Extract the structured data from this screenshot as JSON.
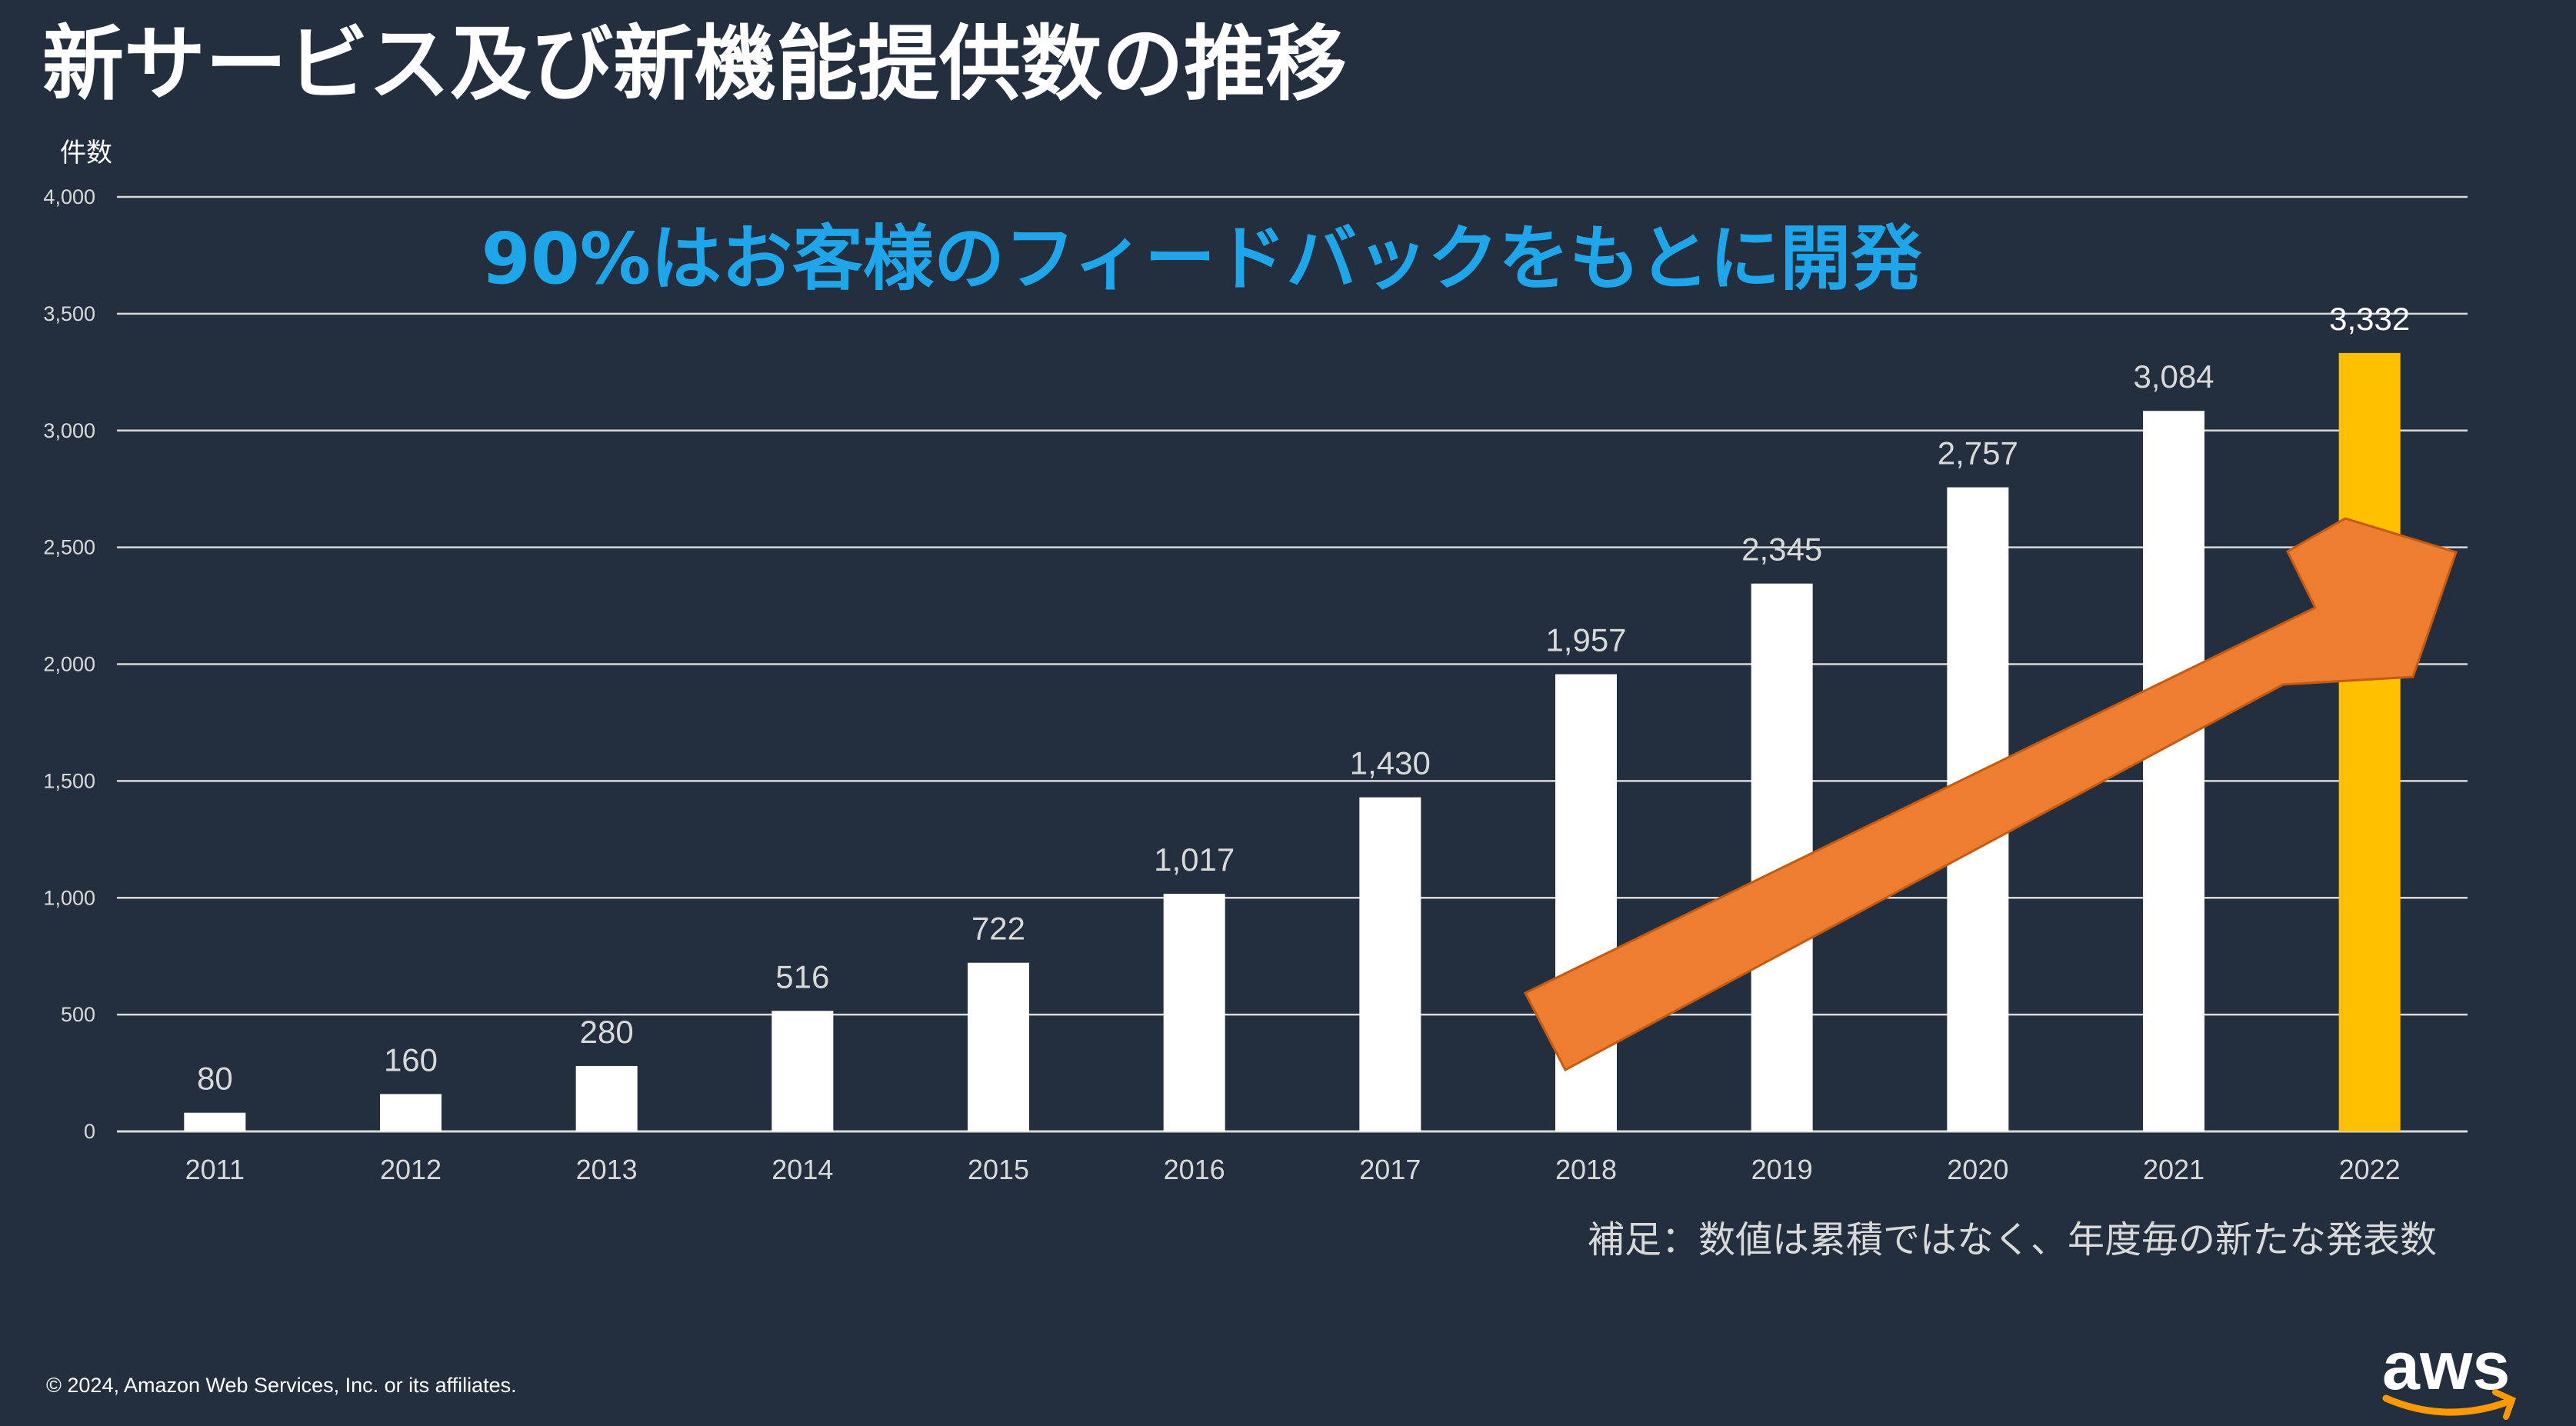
{
  "slide": {
    "title": "新サービス及び新機能提供数の推移",
    "headline": "90%はお客様のフィードバックをもとに開発",
    "footnote": "補足：数値は累積ではなく、年度毎の新たな発表数",
    "copyright": "© 2024, Amazon Web Services, Inc. or its affiliates.",
    "logo_text": "aws"
  },
  "colors": {
    "background": "#232f3e",
    "bar": "#ffffff",
    "highlight_bar": "#ffc000",
    "headline": "#1fa6ea",
    "arrow": "#ed7d31",
    "gridline": "#d9d9d9",
    "text": "#ffffff",
    "tick_text": "#d9d9d9"
  },
  "chart_data": {
    "type": "bar",
    "title": "",
    "ylabel": "件数",
    "xlabel": "",
    "categories": [
      "2011",
      "2012",
      "2013",
      "2014",
      "2015",
      "2016",
      "2017",
      "2018",
      "2019",
      "2020",
      "2021",
      "2022"
    ],
    "values": [
      80,
      160,
      280,
      516,
      722,
      1017,
      1430,
      1957,
      2345,
      2757,
      3084,
      3332
    ],
    "value_labels": [
      "80",
      "160",
      "280",
      "516",
      "722",
      "1,017",
      "1,430",
      "1,957",
      "2,345",
      "2,757",
      "3,084",
      "3,332"
    ],
    "highlight_category": "2022",
    "ylim": [
      0,
      4000
    ],
    "yticks": [
      0,
      500,
      1000,
      1500,
      2000,
      2500,
      3000,
      3500,
      4000
    ],
    "ytick_labels": [
      "0",
      "500",
      "1,000",
      "1,500",
      "2,000",
      "2,500",
      "3,000",
      "3,500",
      "4,000"
    ],
    "grid": true,
    "legend": "none",
    "annotation": "upward trend arrow"
  }
}
